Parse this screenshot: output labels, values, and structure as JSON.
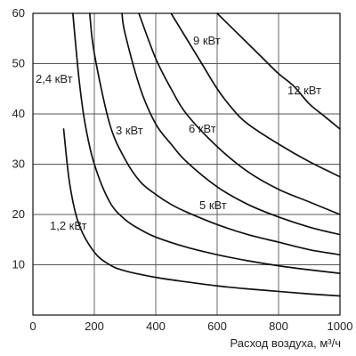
{
  "chart_data": {
    "type": "line",
    "xlabel": "Расход воздуха, м³/ч",
    "ylabel": "",
    "xlim": [
      0,
      1000
    ],
    "ylim": [
      0,
      60
    ],
    "x_ticks": [
      0,
      200,
      400,
      600,
      800,
      1000
    ],
    "y_ticks": [
      10,
      20,
      30,
      40,
      50,
      60
    ],
    "grid": true,
    "colors": {
      "line": "#111111",
      "grid": "#555555",
      "frame": "#111111"
    },
    "series": [
      {
        "name": "1,2 кВт",
        "x": [
          100,
          120,
          150,
          200,
          250,
          300,
          400,
          500,
          600,
          700,
          800,
          900,
          1000
        ],
        "y": [
          37,
          26,
          18,
          12.5,
          10,
          8.8,
          7.5,
          6.6,
          5.8,
          5.2,
          4.7,
          4.2,
          3.8
        ]
      },
      {
        "name": "2,4 кВт",
        "x": [
          130,
          150,
          170,
          200,
          250,
          300,
          350,
          400,
          500,
          600,
          700,
          800,
          900,
          1000
        ],
        "y": [
          60,
          47,
          38,
          30,
          22.5,
          19,
          17,
          15.5,
          13.5,
          12,
          10.8,
          9.8,
          9,
          8.3
        ]
      },
      {
        "name": "3 кВт",
        "x": [
          185,
          200,
          250,
          300,
          350,
          400,
          450,
          500,
          600,
          700,
          800,
          900,
          1000
        ],
        "y": [
          60,
          52,
          38,
          31,
          26.5,
          24,
          22,
          20.5,
          18,
          16,
          14.5,
          13,
          12
        ]
      },
      {
        "name": "5 кВт",
        "x": [
          290,
          300,
          350,
          400,
          450,
          500,
          600,
          700,
          800,
          900,
          1000
        ],
        "y": [
          60,
          56,
          45,
          38,
          34,
          30.5,
          25.5,
          22,
          19.5,
          17.5,
          16
        ]
      },
      {
        "name": "6 кВт",
        "x": [
          345,
          400,
          450,
          500,
          600,
          700,
          800,
          900,
          1000
        ],
        "y": [
          60,
          51,
          45,
          40,
          33.5,
          28.5,
          25,
          22.5,
          20
        ]
      },
      {
        "name": "9 кВт",
        "x": [
          450,
          500,
          550,
          600,
          650,
          700,
          800,
          900,
          1000
        ],
        "y": [
          60,
          55,
          50,
          45,
          41,
          38,
          34,
          30.5,
          27.5
        ]
      },
      {
        "name": "12 кВт",
        "x": [
          600,
          650,
          700,
          750,
          800,
          850,
          900,
          950,
          1000
        ],
        "y": [
          60,
          57,
          54,
          51,
          48,
          45.5,
          42,
          39.5,
          37
        ]
      }
    ]
  }
}
